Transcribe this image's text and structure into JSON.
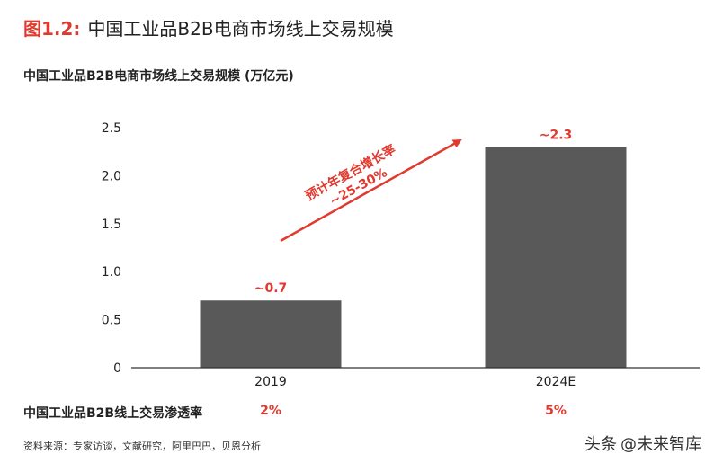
{
  "figure": {
    "number": "图1.2:",
    "title": "中国工业品B2B电商市场线上交易规模"
  },
  "chart_data": {
    "type": "bar",
    "title": "中国工业品B2B电商市场线上交易规模 (万亿元)",
    "categories": [
      "2019",
      "2024E"
    ],
    "values": [
      0.7,
      2.3
    ],
    "data_labels": [
      "~0.7",
      "~2.3"
    ],
    "ylim": [
      0,
      2.5
    ],
    "yticks": [
      0,
      0.5,
      1.0,
      1.5,
      2.0,
      2.5
    ],
    "ytick_labels": [
      "0",
      "0.5",
      "1.0",
      "1.5",
      "2.0",
      "2.5"
    ],
    "grid": false,
    "bar_color": "#595959",
    "accent_color": "#e03a2f",
    "annotation": {
      "line1": "预计年复合增长率",
      "line2": "~25-30%"
    }
  },
  "penetration": {
    "label": "中国工业品B2B线上交易渗透率",
    "values": [
      "2%",
      "5%"
    ]
  },
  "source": "资料来源：专家访谈，文献研究，阿里巴巴，贝恩分析",
  "watermark": {
    "brand": "头条",
    "handle": "@未来智库"
  }
}
